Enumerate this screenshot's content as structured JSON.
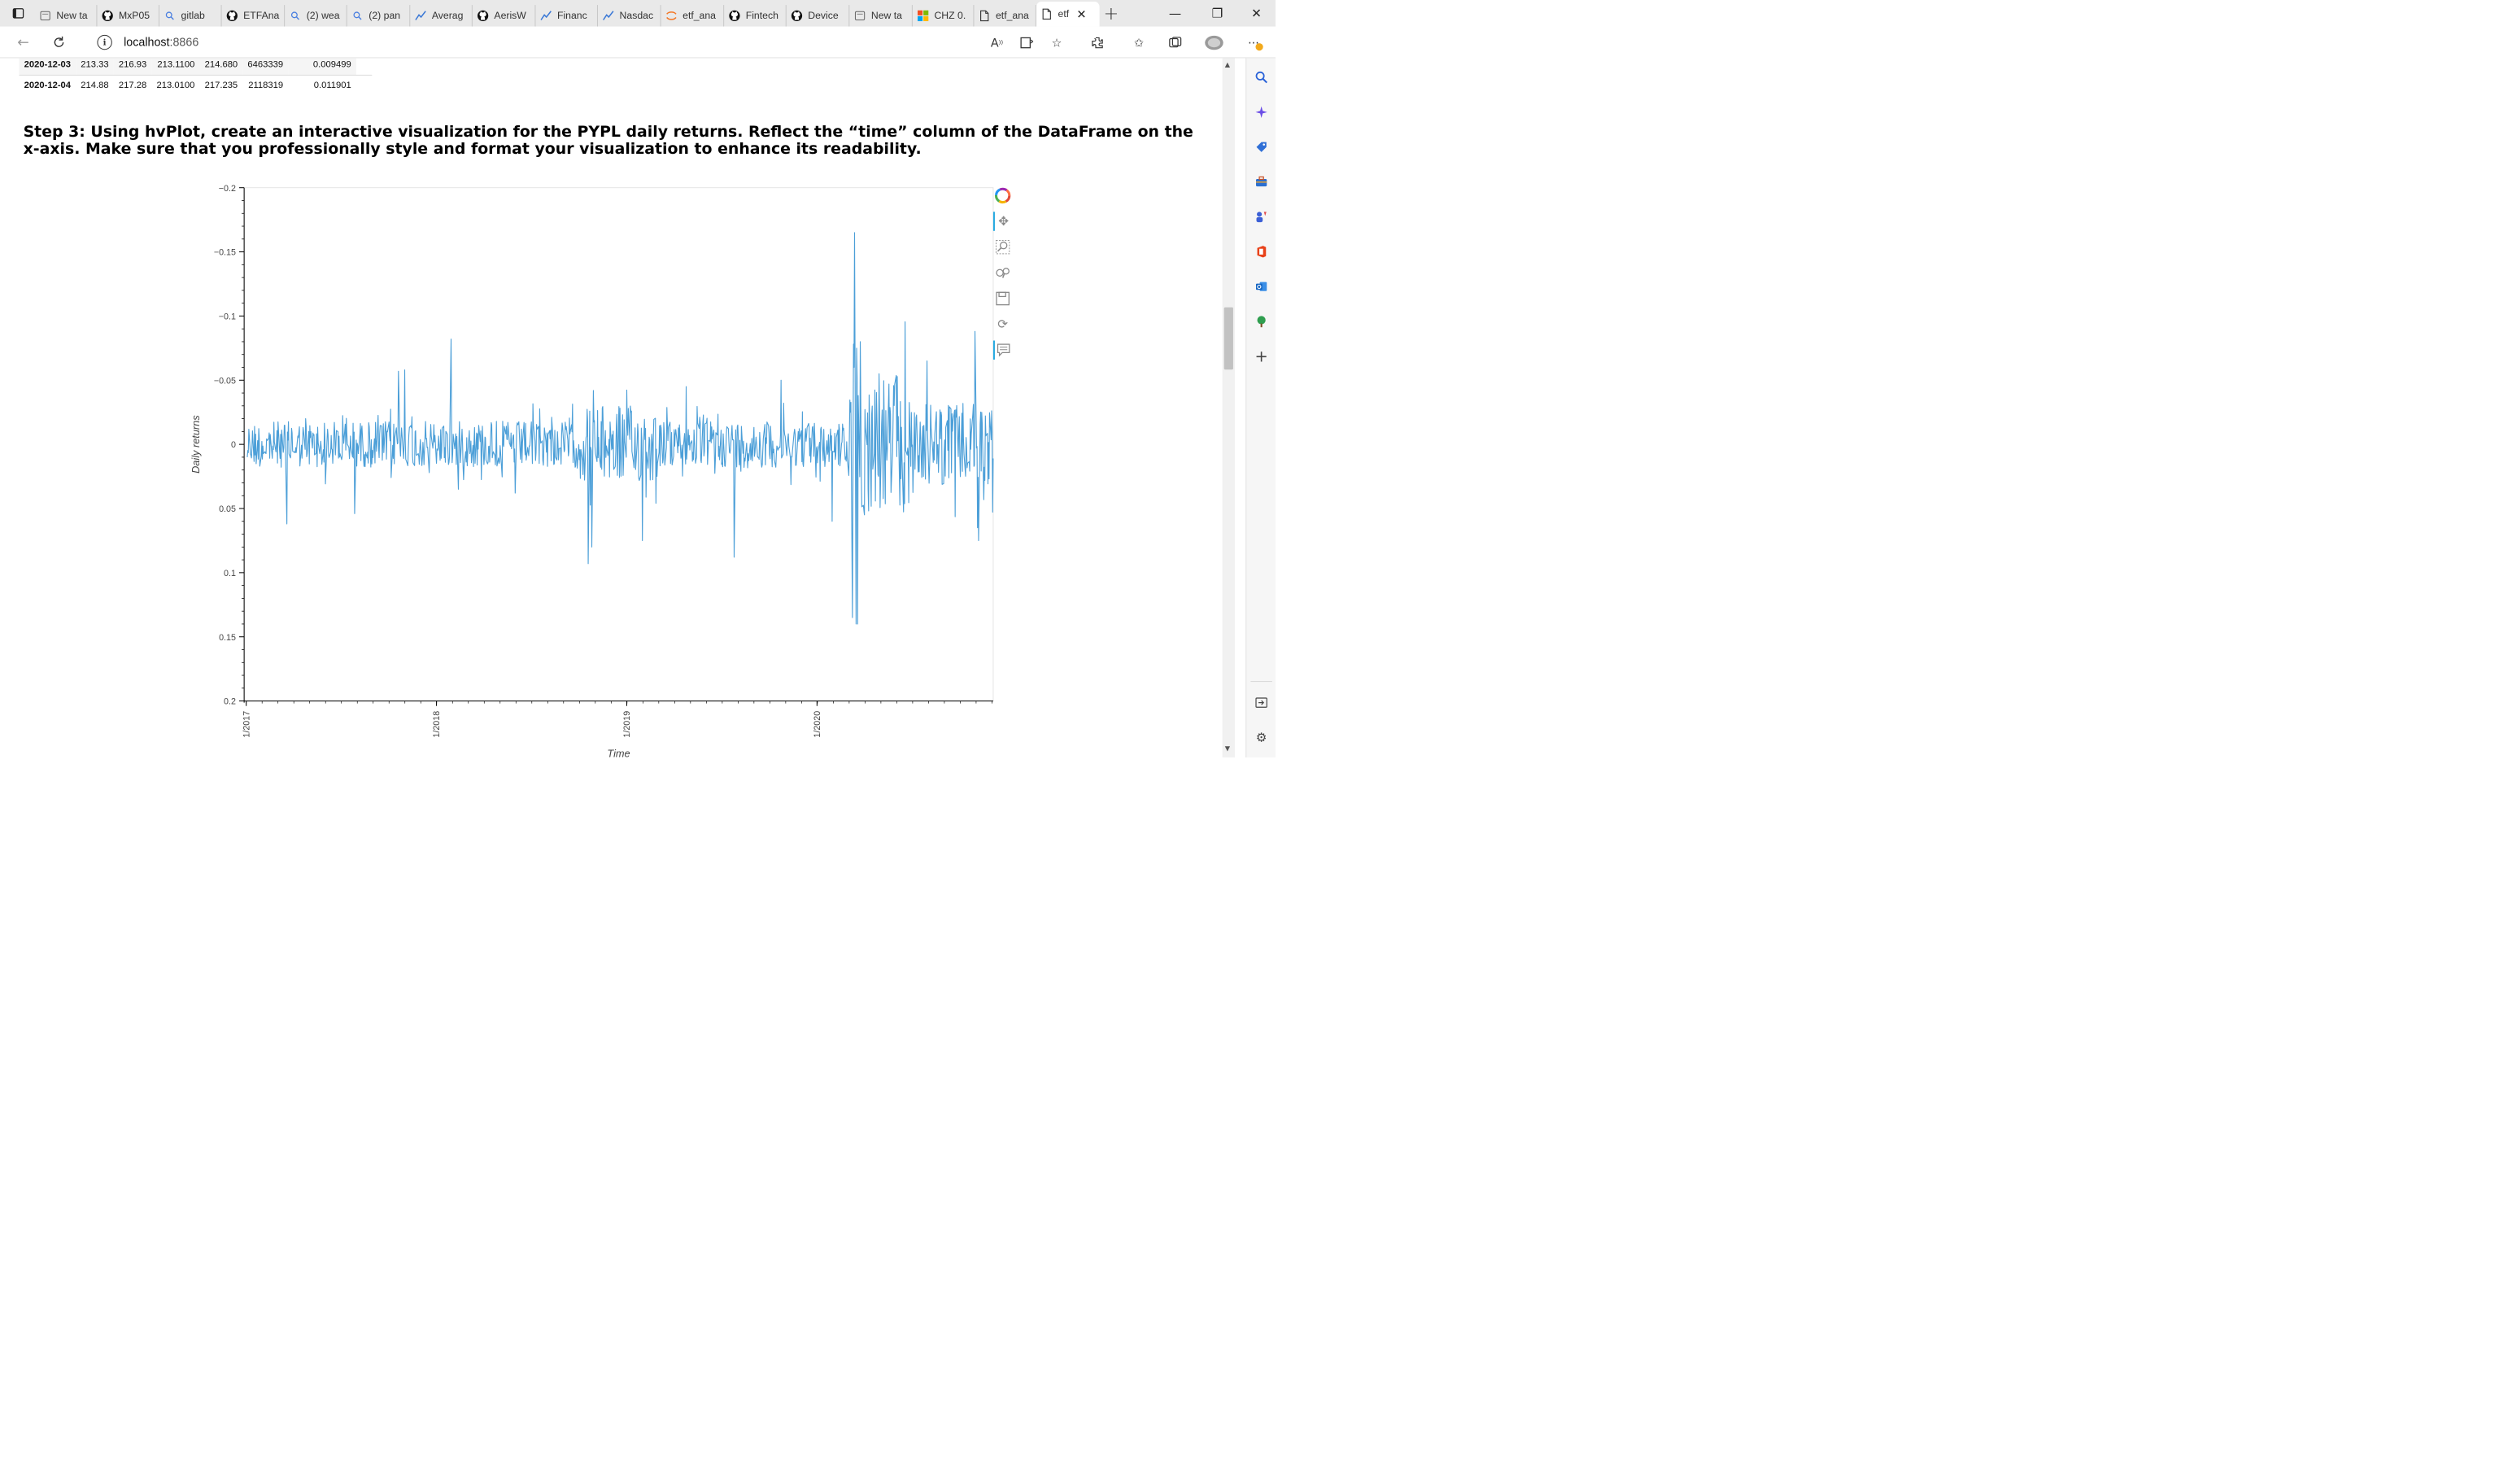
{
  "browser": {
    "tabs": [
      {
        "title": "New ta",
        "icon": "page-icon"
      },
      {
        "title": "MxP05",
        "icon": "github-icon"
      },
      {
        "title": "gitlab",
        "icon": "search-icon"
      },
      {
        "title": "ETFAna",
        "icon": "github-icon"
      },
      {
        "title": "(2) wea",
        "icon": "search-icon"
      },
      {
        "title": "(2) pan",
        "icon": "search-icon"
      },
      {
        "title": "Averag",
        "icon": "chart-icon"
      },
      {
        "title": "AerisW",
        "icon": "github-icon"
      },
      {
        "title": "Financ",
        "icon": "chart-icon"
      },
      {
        "title": "Nasdac",
        "icon": "chart-icon"
      },
      {
        "title": "etf_ana",
        "icon": "jupyter-icon"
      },
      {
        "title": "Fintech",
        "icon": "github-icon"
      },
      {
        "title": "Device",
        "icon": "github-icon"
      },
      {
        "title": "New ta",
        "icon": "page-icon"
      },
      {
        "title": "CHZ 0.",
        "icon": "windows-icon"
      },
      {
        "title": "etf_ana",
        "icon": "document-icon"
      },
      {
        "title": "etf",
        "icon": "document-icon",
        "active": true
      }
    ],
    "address": {
      "host": "localhost",
      "port": ":8866"
    }
  },
  "table": {
    "rows": [
      {
        "date": "2020-12-03",
        "open": "213.33",
        "high": "216.93",
        "low": "213.1100",
        "close": "214.680",
        "volume": "6463339",
        "ret": "0.009499"
      },
      {
        "date": "2020-12-04",
        "open": "214.88",
        "high": "217.28",
        "low": "213.0100",
        "close": "217.235",
        "volume": "2118319",
        "ret": "0.011901"
      }
    ]
  },
  "heading": "Step 3: Using hvPlot, create an interactive visualization for the PYPL daily returns. Reflect the “time” column of the DataFrame on the x-axis. Make sure that you professionally style and format your visualization to enhance its readability.",
  "chart_data": {
    "type": "line",
    "xlabel": "Time",
    "ylabel": "Daily returns",
    "y_inverted": true,
    "ylim": [
      -0.2,
      0.2
    ],
    "y_ticks": [
      "−0.2",
      "−0.15",
      "−0.1",
      "−0.05",
      "0",
      "0.05",
      "0.1",
      "0.15",
      "0.2"
    ],
    "x_ticks": [
      "1/2017",
      "1/2018",
      "1/2019",
      "1/2020"
    ],
    "xlim": [
      "2016-12-28",
      "2020-12-04"
    ],
    "color": "#4c9fd8",
    "series": [
      {
        "x": [
          "2017-01-03",
          "2017-03-20",
          "2017-04-25",
          "2017-07-28",
          "2017-10-20",
          "2017-11-01",
          "2018-01-29",
          "2018-02-12",
          "2018-06-01",
          "2018-10-19",
          "2018-10-26",
          "2019-01-31",
          "2019-04-25",
          "2019-07-26",
          "2019-10-24",
          "2020-01-30",
          "2020-03-09",
          "2020-03-12",
          "2020-03-13",
          "2020-03-16",
          "2020-03-17",
          "2020-03-19",
          "2020-03-24",
          "2020-04-01",
          "2020-04-29",
          "2020-07-30",
          "2020-10-30",
          "2020-11-04",
          "2020-11-06",
          "2020-12-04"
        ],
        "y": [
          0.01,
          0.062,
          -0.02,
          0.054,
          -0.057,
          -0.058,
          -0.082,
          0.035,
          0.038,
          0.093,
          0.08,
          0.075,
          -0.045,
          0.088,
          -0.05,
          0.06,
          0.135,
          -0.06,
          -0.165,
          0.14,
          -0.075,
          0.14,
          -0.08,
          0.055,
          -0.055,
          -0.065,
          -0.088,
          0.065,
          0.075,
          0.011
        ]
      }
    ]
  }
}
